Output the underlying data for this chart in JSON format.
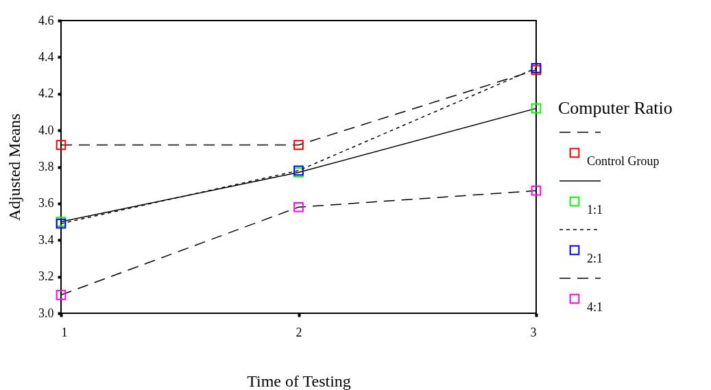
{
  "chart_data": {
    "type": "line",
    "xlabel": "Time of Testing",
    "ylabel": "Adjusted Means",
    "legend_title": "Computer Ratio",
    "x": [
      1,
      2,
      3
    ],
    "xlim": [
      1,
      3
    ],
    "xticks": [
      1,
      2,
      3
    ],
    "ylim": [
      3.0,
      4.6
    ],
    "yticks": [
      {
        "value": 3.0,
        "label": "3.0"
      },
      {
        "value": 3.2,
        "label": "3.2"
      },
      {
        "value": 3.4,
        "label": "3.4"
      },
      {
        "value": 3.6,
        "label": "3.6"
      },
      {
        "value": 3.8,
        "label": "3.8"
      },
      {
        "value": 4.0,
        "label": "4.0"
      },
      {
        "value": 4.2,
        "label": "4.2"
      },
      {
        "value": 4.4,
        "label": "4.4"
      },
      {
        "value": 4.6,
        "label": "4.6"
      }
    ],
    "grid": false,
    "legend": "right",
    "marker": "square",
    "series": [
      {
        "name": "Control Group",
        "color": "#ff0000",
        "line_style": "dashed",
        "values": [
          3.92,
          3.92,
          4.33
        ]
      },
      {
        "name": "1:1",
        "color": "#00ff00",
        "line_style": "solid",
        "values": [
          3.5,
          3.77,
          4.12
        ]
      },
      {
        "name": "2:1",
        "color": "#0000ff",
        "line_style": "dotted",
        "values": [
          3.49,
          3.78,
          4.34
        ]
      },
      {
        "name": "4:1",
        "color": "#ff00ff",
        "line_style": "dashed",
        "values": [
          3.1,
          3.58,
          3.67
        ]
      }
    ]
  }
}
